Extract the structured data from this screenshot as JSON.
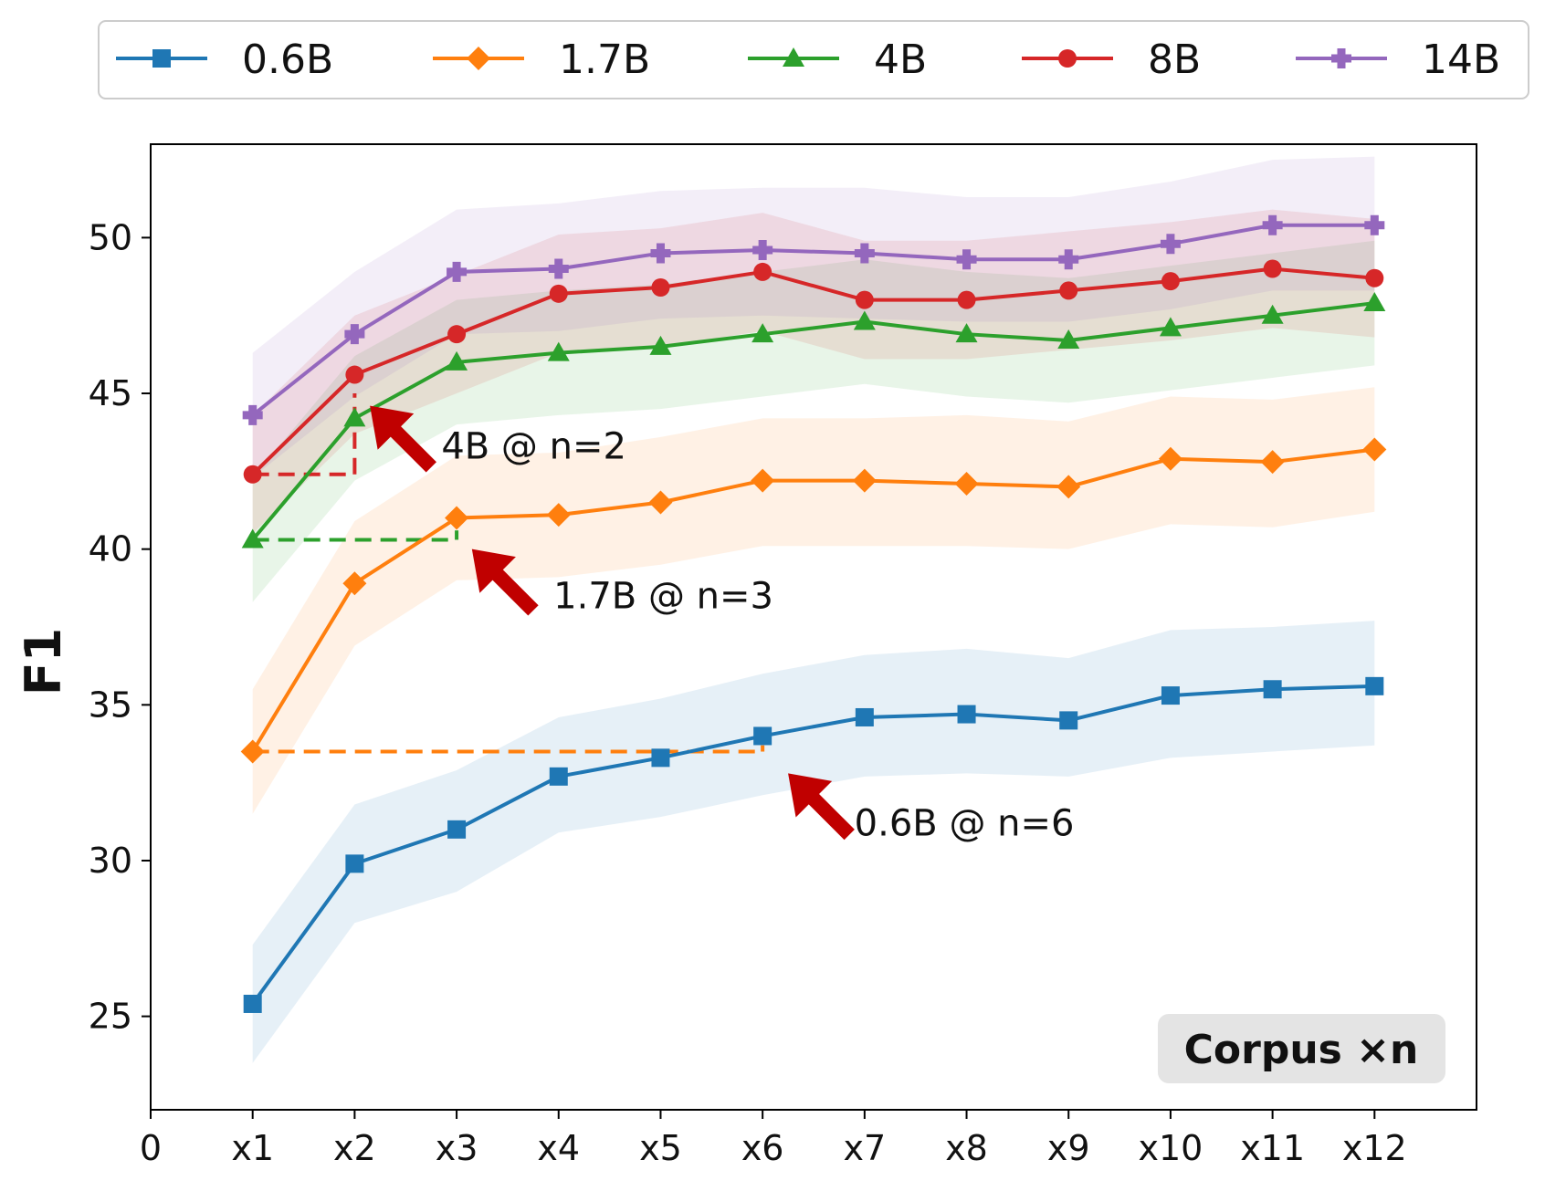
{
  "chart_data": {
    "type": "line",
    "title": "",
    "xlabel": "",
    "ylabel": "F1",
    "categories": [
      "0",
      "x1",
      "x2",
      "x3",
      "x4",
      "x5",
      "x6",
      "x7",
      "x8",
      "x9",
      "x10",
      "x11",
      "x12"
    ],
    "x": [
      1,
      2,
      3,
      4,
      5,
      6,
      7,
      8,
      9,
      10,
      11,
      12
    ],
    "xlim": [
      0,
      13
    ],
    "ylim": [
      22.0,
      53.0
    ],
    "yticks": [
      25,
      30,
      35,
      40,
      45,
      50
    ],
    "grid": false,
    "legend_position": "top",
    "series": [
      {
        "name": "0.6B",
        "color": "#1f77b4",
        "marker": "square",
        "values": [
          25.4,
          29.9,
          31.0,
          32.7,
          33.3,
          34.0,
          34.6,
          34.7,
          34.5,
          35.3,
          35.5,
          35.6
        ],
        "lower": [
          23.5,
          28.0,
          29.0,
          30.9,
          31.4,
          32.1,
          32.7,
          32.8,
          32.7,
          33.3,
          33.5,
          33.7
        ],
        "upper": [
          27.3,
          31.8,
          32.9,
          34.6,
          35.2,
          36.0,
          36.6,
          36.8,
          36.5,
          37.4,
          37.5,
          37.7
        ]
      },
      {
        "name": "1.7B",
        "color": "#ff7f0e",
        "marker": "diamond",
        "values": [
          33.5,
          38.9,
          41.0,
          41.1,
          41.5,
          42.2,
          42.2,
          42.1,
          42.0,
          42.9,
          42.8,
          43.2
        ],
        "lower": [
          31.5,
          36.9,
          39.0,
          39.1,
          39.5,
          40.1,
          40.1,
          40.1,
          40.0,
          40.8,
          40.7,
          41.2
        ],
        "upper": [
          35.5,
          40.9,
          43.0,
          43.1,
          43.6,
          44.2,
          44.2,
          44.3,
          44.1,
          44.9,
          44.8,
          45.2
        ]
      },
      {
        "name": "4B",
        "color": "#2ca02c",
        "marker": "triangle",
        "values": [
          40.3,
          44.2,
          46.0,
          46.3,
          46.5,
          46.9,
          47.3,
          46.9,
          46.7,
          47.1,
          47.5,
          47.9
        ],
        "lower": [
          38.3,
          42.2,
          44.0,
          44.3,
          44.5,
          44.9,
          45.3,
          44.9,
          44.7,
          45.1,
          45.5,
          45.9
        ],
        "upper": [
          42.3,
          46.2,
          48.0,
          48.3,
          48.5,
          48.9,
          49.3,
          48.9,
          48.7,
          49.1,
          49.5,
          49.9
        ]
      },
      {
        "name": "8B",
        "color": "#d62728",
        "marker": "circle",
        "values": [
          42.4,
          45.6,
          46.9,
          48.2,
          48.4,
          48.9,
          48.0,
          48.0,
          48.3,
          48.6,
          49.0,
          48.7
        ],
        "lower": [
          40.5,
          43.7,
          45.0,
          46.3,
          46.5,
          47.0,
          46.1,
          46.1,
          46.4,
          46.7,
          47.1,
          46.8
        ],
        "upper": [
          44.3,
          47.5,
          48.8,
          50.1,
          50.3,
          50.8,
          49.9,
          49.9,
          50.2,
          50.5,
          50.9,
          50.6
        ]
      },
      {
        "name": "14B",
        "color": "#9467bd",
        "marker": "plus",
        "values": [
          44.3,
          46.9,
          48.9,
          49.0,
          49.5,
          49.6,
          49.5,
          49.3,
          49.3,
          49.8,
          50.4,
          50.4
        ],
        "lower": [
          42.3,
          44.9,
          46.9,
          47.0,
          47.4,
          47.5,
          47.4,
          47.3,
          47.3,
          47.7,
          48.3,
          48.3
        ],
        "upper": [
          46.3,
          48.9,
          50.9,
          51.1,
          51.5,
          51.6,
          51.6,
          51.3,
          51.3,
          51.8,
          52.5,
          52.6
        ]
      }
    ],
    "reference_lines": [
      {
        "color": "#d62728",
        "y": 42.4,
        "x_from": 1,
        "x_to": 2,
        "meets_y": 45.0
      },
      {
        "color": "#2ca02c",
        "y": 40.3,
        "x_from": 1,
        "x_to": 3,
        "meets_y": 40.6
      },
      {
        "color": "#ff7f0e",
        "y": 33.5,
        "x_from": 1,
        "x_to": 6,
        "meets_y": 33.7
      }
    ],
    "annotations": [
      {
        "text": "4B @ n=2",
        "color": "#c00000",
        "point_x": 2.15,
        "point_y": 44.6,
        "label_x": 2.85,
        "label_y": 42.9
      },
      {
        "text": "1.7B @ n=3",
        "color": "#c00000",
        "point_x": 3.15,
        "point_y": 40.0,
        "label_x": 3.95,
        "label_y": 38.1
      },
      {
        "text": "0.6B @ n=6",
        "color": "#c00000",
        "point_x": 6.25,
        "point_y": 32.8,
        "label_x": 6.9,
        "label_y": 30.8
      }
    ],
    "corner_label": "Corpus ×n",
    "corner_label_position": "bottom-right"
  }
}
